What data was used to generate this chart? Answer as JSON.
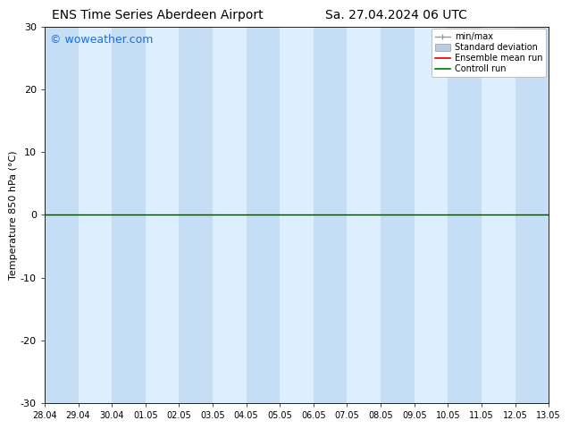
{
  "title_left": "ENS Time Series Aberdeen Airport",
  "title_right": "Sa. 27.04.2024 06 UTC",
  "ylabel": "Temperature 850 hPa (°C)",
  "ylim": [
    -30,
    30
  ],
  "yticks": [
    -30,
    -20,
    -10,
    0,
    10,
    20,
    30
  ],
  "x_tick_labels": [
    "28.04",
    "29.04",
    "30.04",
    "01.05",
    "02.05",
    "03.05",
    "04.05",
    "05.05",
    "06.05",
    "07.05",
    "08.05",
    "09.05",
    "10.05",
    "11.05",
    "12.05",
    "13.05"
  ],
  "watermark": "© woweather.com",
  "watermark_color": "#1a6fe6",
  "bg_color": "#ffffff",
  "plot_bg_light": "#ddeeff",
  "plot_bg_dark": "#c5ddf5",
  "legend_labels": [
    "min/max",
    "Standard deviation",
    "Ensemble mean run",
    "Controll run"
  ],
  "legend_minmax_color": "#999999",
  "legend_std_color": "#bbcce0",
  "legend_ens_color": "#dd0000",
  "legend_ctrl_color": "#007700",
  "zero_line_color": "#004400",
  "font_size": 8,
  "title_font_size": 10
}
